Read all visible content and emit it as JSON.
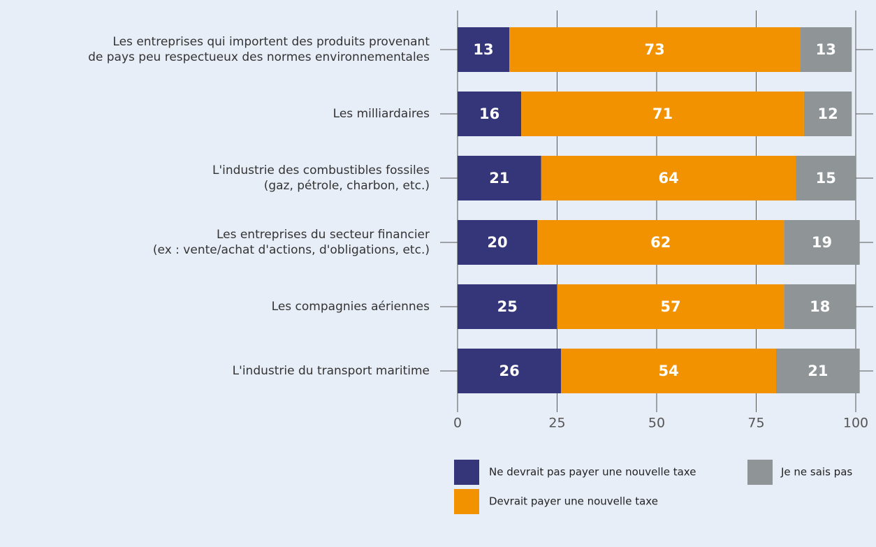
{
  "chart_data": {
    "type": "stacked_barh",
    "categories": [
      "Les entreprises qui importent des produits provenant\nde pays peu respectueux des normes environnementales",
      "Les milliardaires",
      "L'industrie des combustibles fossiles\n(gaz, pétrole, charbon, etc.)",
      "Les entreprises du secteur financier\n(ex : vente/achat d'actions, d'obligations, etc.)",
      "Les compagnies aériennes",
      "L'industrie du transport maritime"
    ],
    "series": [
      {
        "name": "Ne devrait pas payer une nouvelle taxe",
        "color": "#35357a",
        "values": [
          13,
          16,
          21,
          20,
          25,
          26
        ]
      },
      {
        "name": "Devrait payer une nouvelle taxe",
        "color": "#f39200",
        "values": [
          73,
          71,
          64,
          62,
          57,
          54
        ]
      },
      {
        "name": "Je ne sais pas",
        "color": "#8f9497",
        "values": [
          13,
          12,
          15,
          19,
          18,
          21
        ]
      }
    ],
    "xlim": [
      0,
      100
    ],
    "xticks": [
      0,
      25,
      50,
      75,
      100
    ],
    "grid": true
  }
}
